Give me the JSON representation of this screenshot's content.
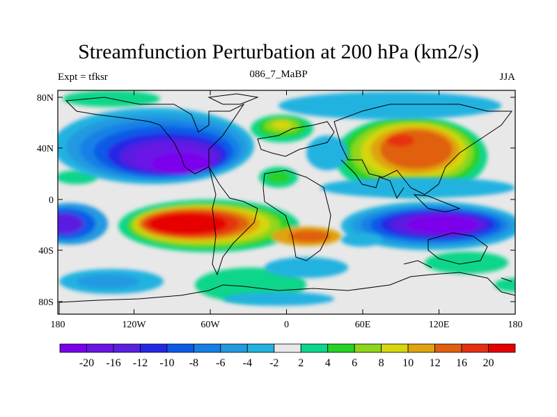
{
  "title": "Streamfunction Perturbation at 200 hPa (km2/s)",
  "subtitle_left": "Expt = tfksr",
  "subtitle_center": "086_7_MaBP",
  "subtitle_right": "JJA",
  "lat_ticks": [
    "80N",
    "40N",
    "0",
    "40S",
    "80S"
  ],
  "lon_ticks": [
    "180",
    "120W",
    "60W",
    "0",
    "60E",
    "120E",
    "180"
  ],
  "colorbar": {
    "labels": [
      "-20",
      "-16",
      "-12",
      "-10",
      "-8",
      "-6",
      "-4",
      "-2",
      "2",
      "4",
      "6",
      "8",
      "10",
      "12",
      "16",
      "20"
    ],
    "colors": [
      "#7b00ec",
      "#6b14e6",
      "#5a1fe0",
      "#2626e6",
      "#0b5ae6",
      "#1480e6",
      "#2299e0",
      "#22b2e0",
      "#e8e8e8",
      "#0cd68a",
      "#27d227",
      "#8fd61a",
      "#d6d60c",
      "#e0a310",
      "#e06010",
      "#e63010",
      "#e60000"
    ]
  }
}
